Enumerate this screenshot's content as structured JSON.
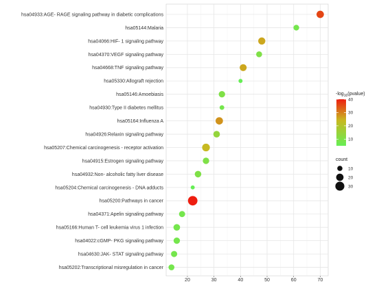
{
  "chart_data": {
    "type": "scatter",
    "title": "",
    "xlabel": "",
    "ylabel": "",
    "xlim": [
      12,
      73
    ],
    "x_ticks": [
      20,
      30,
      40,
      50,
      60,
      70
    ],
    "grid": true,
    "categories": [
      "hsa04933:AGE- RAGE signaling pathway in diabetic complications",
      "hsa05144:Malaria",
      "hsa04066:HIF- 1 signaling pathway",
      "hsa04370:VEGF signaling pathway",
      "hsa04668:TNF signaling pathway",
      "hsa05330:Allograft rejection",
      "hsa05146:Amoebiasis",
      "hsa04930:Type II diabetes mellitus",
      "hsa05164:Influenza A",
      "hsa04926:Relaxin signaling pathway",
      "hsa05207:Chemical carcinogenesis -  receptor activation",
      "hsa04915:Estrogen signaling pathway",
      "hsa04932:Non- alcoholic fatty liver disease",
      "hsa05204:Chemical carcinogenesis -  DNA adducts",
      "hsa05200:Pathways in cancer",
      "hsa04371:Apelin signaling pathway",
      "hsa05166:Human T- cell leukemia virus 1 infection",
      "hsa04022:cGMP- PKG signaling pathway",
      "hsa04630:JAK- STAT signaling pathway",
      "hsa05202:Transcriptional misregulation in cancer"
    ],
    "x": [
      70,
      61,
      48,
      47,
      41,
      40,
      33,
      33,
      32,
      31,
      27,
      27,
      24,
      22,
      22,
      18,
      16,
      16,
      15,
      14
    ],
    "count": [
      20,
      12,
      19,
      13,
      18,
      6,
      15,
      8,
      20,
      16,
      22,
      15,
      16,
      6,
      33,
      14,
      16,
      15,
      14,
      13
    ],
    "color_value": [
      36,
      8,
      26,
      10,
      26,
      5,
      10,
      8,
      28,
      14,
      24,
      10,
      10,
      5,
      40,
      8,
      8,
      8,
      8,
      8
    ],
    "color_legend": {
      "title_prefix": "-log",
      "title_sub": "10",
      "title_suffix": "(pvalue)",
      "ticks": [
        40,
        30,
        20,
        10
      ],
      "range": [
        5,
        40
      ],
      "colors": [
        "#66ee55",
        "#c8b820",
        "#ee1e10"
      ]
    },
    "size_legend": {
      "title": "count",
      "values": [
        10,
        20,
        30
      ]
    }
  }
}
